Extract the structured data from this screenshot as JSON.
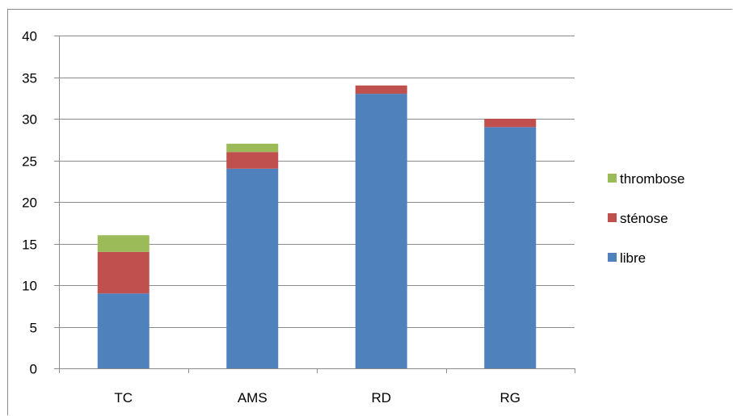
{
  "chart_data": {
    "type": "bar",
    "stacked": true,
    "title": "",
    "xlabel": "",
    "ylabel": "",
    "categories": [
      "TC",
      "AMS",
      "RD",
      "RG"
    ],
    "series": [
      {
        "name": "libre",
        "values": [
          9,
          24,
          33,
          29
        ],
        "color": "#4f81bd"
      },
      {
        "name": "sténose",
        "values": [
          5,
          2,
          1,
          1
        ],
        "color": "#c0504d"
      },
      {
        "name": "thrombose",
        "values": [
          2,
          1,
          0,
          0
        ],
        "color": "#9bbb59"
      }
    ],
    "ylim": [
      0,
      40
    ],
    "yticks": [
      0,
      5,
      10,
      15,
      20,
      25,
      30,
      35,
      40
    ],
    "grid": true,
    "legend_position": "right",
    "legend_order": [
      "thrombose",
      "sténose",
      "libre"
    ]
  }
}
